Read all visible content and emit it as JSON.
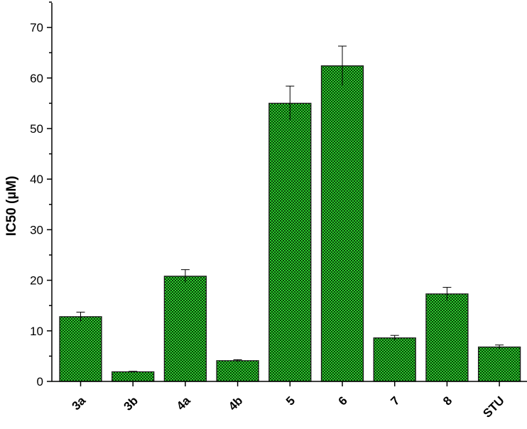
{
  "chart_data": {
    "type": "bar",
    "title": "",
    "xlabel": "",
    "ylabel": "IC50 (µM)",
    "ylim": [
      0,
      75
    ],
    "yticks": [
      0,
      10,
      20,
      30,
      40,
      50,
      60,
      70
    ],
    "categories": [
      "3a",
      "3b",
      "4a",
      "4b",
      "5",
      "6",
      "7",
      "8",
      "STU"
    ],
    "values": [
      12.8,
      1.9,
      20.8,
      4.1,
      55.0,
      62.4,
      8.6,
      17.3,
      6.8
    ],
    "errors": [
      0.9,
      0.1,
      1.3,
      0.2,
      3.4,
      3.9,
      0.5,
      1.3,
      0.4
    ],
    "grid": false,
    "legend": "none",
    "bar_fill": "#2bd12b",
    "bar_pattern": "#0a3a0a",
    "bar_stroke": "#1a1a1a"
  }
}
